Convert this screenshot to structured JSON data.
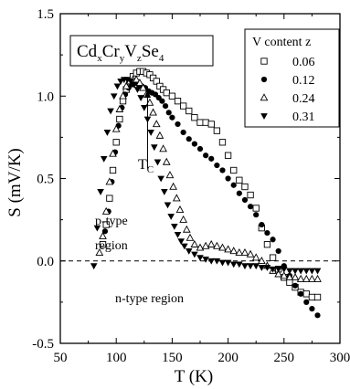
{
  "chart_data": {
    "type": "scatter",
    "title": "",
    "xlabel": "T  (K)",
    "ylabel": "S  (mV/K)",
    "xlim": [
      50,
      300
    ],
    "ylim": [
      -0.5,
      1.5
    ],
    "xticks": [
      50,
      100,
      150,
      200,
      250,
      300
    ],
    "yticks": [
      -0.5,
      0.0,
      0.5,
      1.0,
      1.5
    ],
    "xtick_labels": [
      "50",
      "100",
      "150",
      "200",
      "250",
      "300"
    ],
    "ytick_labels": [
      "-0.5",
      "0.0",
      "0.5",
      "1.0",
      "1.5"
    ],
    "grid": false,
    "zero_line": "dashed",
    "legend": {
      "title": "V content z",
      "position": "top-right",
      "entries": [
        "0.06",
        "0.12",
        "0.24",
        "0.31"
      ]
    },
    "formula": {
      "parts": [
        {
          "t": "Cd",
          "sub": false
        },
        {
          "t": "x",
          "sub": true
        },
        {
          "t": "Cr",
          "sub": false
        },
        {
          "t": "y",
          "sub": true
        },
        {
          "t": "V",
          "sub": false
        },
        {
          "t": "z",
          "sub": true
        },
        {
          "t": "Se",
          "sub": false
        },
        {
          "t": "4",
          "sub": true
        }
      ]
    },
    "annotations": {
      "tc_main": "T",
      "tc_sub": "C",
      "tc_arrow": {
        "x": 128,
        "from_y": 0.56,
        "to_y": 1.04
      },
      "ptype_line1": "p-type",
      "ptype_line2": "region",
      "ntype": "n-type region"
    },
    "series": [
      {
        "name": "0.06",
        "marker": "open-square",
        "x": [
          88,
          91,
          94,
          97,
          100,
          103,
          106,
          109,
          112,
          115,
          118,
          121,
          124,
          127,
          130,
          133,
          136,
          139,
          142,
          145,
          150,
          155,
          160,
          165,
          170,
          175,
          180,
          185,
          190,
          195,
          200,
          205,
          210,
          215,
          220,
          225,
          230,
          235,
          240,
          245,
          250,
          255,
          260,
          265,
          270,
          275,
          280
        ],
        "y": [
          0.1,
          0.22,
          0.38,
          0.55,
          0.72,
          0.86,
          0.97,
          1.04,
          1.09,
          1.12,
          1.14,
          1.15,
          1.15,
          1.14,
          1.13,
          1.11,
          1.09,
          1.06,
          1.04,
          1.02,
          1.0,
          0.97,
          0.94,
          0.91,
          0.87,
          0.84,
          0.84,
          0.83,
          0.79,
          0.72,
          0.64,
          0.55,
          0.49,
          0.45,
          0.4,
          0.32,
          0.2,
          0.1,
          0.02,
          -0.05,
          -0.1,
          -0.13,
          -0.16,
          -0.19,
          -0.2,
          -0.22,
          -0.22
        ]
      },
      {
        "name": "0.12",
        "marker": "filled-circle",
        "x": [
          90,
          93,
          96,
          99,
          102,
          105,
          108,
          111,
          114,
          117,
          120,
          123,
          126,
          129,
          132,
          135,
          138,
          141,
          144,
          147,
          150,
          155,
          160,
          165,
          170,
          175,
          180,
          185,
          190,
          195,
          200,
          205,
          210,
          215,
          220,
          225,
          230,
          235,
          240,
          245,
          250,
          255,
          260,
          265,
          270,
          275,
          280
        ],
        "y": [
          0.18,
          0.3,
          0.48,
          0.66,
          0.82,
          0.93,
          1.01,
          1.05,
          1.07,
          1.08,
          1.07,
          1.06,
          1.05,
          1.03,
          1.02,
          1.01,
          0.99,
          0.97,
          0.94,
          0.9,
          0.87,
          0.83,
          0.78,
          0.74,
          0.71,
          0.68,
          0.64,
          0.62,
          0.58,
          0.55,
          0.5,
          0.46,
          0.41,
          0.37,
          0.33,
          0.28,
          0.22,
          0.17,
          0.13,
          0.06,
          -0.03,
          -0.09,
          -0.15,
          -0.2,
          -0.25,
          -0.29,
          -0.33
        ]
      },
      {
        "name": "0.24",
        "marker": "open-triangle",
        "x": [
          85,
          88,
          91,
          94,
          97,
          100,
          103,
          106,
          109,
          112,
          115,
          118,
          121,
          124,
          127,
          130,
          133,
          136,
          139,
          142,
          145,
          148,
          151,
          154,
          157,
          160,
          163,
          166,
          170,
          175,
          180,
          185,
          190,
          195,
          200,
          205,
          210,
          215,
          220,
          225,
          230,
          235,
          240,
          245,
          250,
          255,
          260,
          265,
          270,
          275,
          280
        ],
        "y": [
          0.05,
          0.15,
          0.3,
          0.48,
          0.65,
          0.8,
          0.92,
          1.0,
          1.06,
          1.09,
          1.1,
          1.1,
          1.08,
          1.05,
          1.01,
          0.96,
          0.9,
          0.83,
          0.76,
          0.68,
          0.6,
          0.52,
          0.45,
          0.38,
          0.31,
          0.25,
          0.19,
          0.14,
          0.1,
          0.08,
          0.09,
          0.1,
          0.09,
          0.08,
          0.07,
          0.06,
          0.05,
          0.05,
          0.04,
          0.02,
          0.0,
          -0.03,
          -0.06,
          -0.08,
          -0.09,
          -0.1,
          -0.1,
          -0.11,
          -0.11,
          -0.11,
          -0.11
        ]
      },
      {
        "name": "0.31",
        "marker": "filled-triangle-down",
        "x": [
          80,
          83,
          86,
          89,
          92,
          95,
          98,
          101,
          104,
          107,
          110,
          113,
          116,
          119,
          122,
          125,
          128,
          131,
          134,
          137,
          140,
          143,
          146,
          149,
          152,
          155,
          158,
          161,
          165,
          170,
          175,
          180,
          185,
          190,
          195,
          200,
          205,
          210,
          215,
          220,
          225,
          230,
          235,
          240,
          245,
          250,
          255,
          260,
          265,
          270,
          275,
          280
        ],
        "y": [
          -0.03,
          0.2,
          0.42,
          0.62,
          0.78,
          0.91,
          1.0,
          1.06,
          1.09,
          1.1,
          1.1,
          1.09,
          1.07,
          1.04,
          0.99,
          0.93,
          0.86,
          0.78,
          0.69,
          0.6,
          0.5,
          0.42,
          0.34,
          0.27,
          0.21,
          0.16,
          0.12,
          0.09,
          0.06,
          0.04,
          0.02,
          0.01,
          0.0,
          0.0,
          -0.01,
          -0.01,
          -0.02,
          -0.02,
          -0.03,
          -0.03,
          -0.03,
          -0.04,
          -0.04,
          -0.05,
          -0.05,
          -0.05,
          -0.06,
          -0.06,
          -0.06,
          -0.06,
          -0.06,
          -0.06
        ]
      }
    ]
  }
}
